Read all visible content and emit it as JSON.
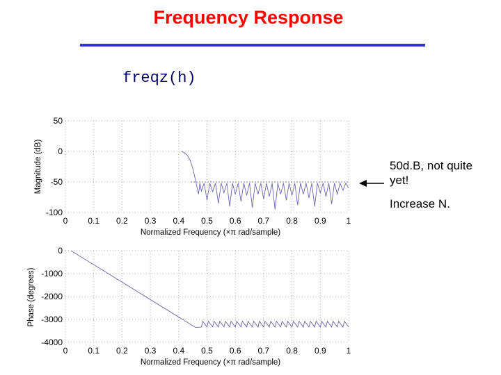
{
  "slide": {
    "title": "Frequency Response",
    "code": "freqz(h)",
    "annotation_1": "50d.B, not quite yet!",
    "annotation_2": "Increase N.",
    "colors": {
      "title": "#ff0000",
      "rule": "#3333cc",
      "code": "#000066",
      "curve": "#6666aa"
    }
  },
  "chart_data": [
    {
      "type": "line",
      "xlabel": "Normalized Frequency  (×π rad/sample)",
      "ylabel": "Magnitude (dB)",
      "xlim": [
        0,
        1
      ],
      "ylim": [
        -100,
        50
      ],
      "xticks": [
        "0",
        "0.1",
        "0.2",
        "0.3",
        "0.4",
        "0.5",
        "0.6",
        "0.7",
        "0.8",
        "0.9",
        "1"
      ],
      "yticks": [
        "50",
        "0",
        "-50",
        "-100"
      ],
      "ytick_values": [
        50,
        0,
        -50,
        -100
      ],
      "grid": true,
      "reference_level": -50,
      "series": [
        {
          "x": [
            0.41,
            0.42,
            0.43,
            0.44,
            0.45,
            0.46,
            0.47,
            0.475,
            0.48,
            0.49,
            0.5,
            0.51,
            0.52,
            0.53,
            0.54,
            0.55,
            0.56,
            0.57,
            0.58,
            0.59,
            0.6,
            0.61,
            0.62,
            0.63,
            0.64,
            0.65,
            0.66,
            0.67,
            0.68,
            0.69,
            0.7,
            0.71,
            0.72,
            0.73,
            0.74,
            0.75,
            0.76,
            0.77,
            0.78,
            0.79,
            0.8,
            0.81,
            0.82,
            0.83,
            0.84,
            0.85,
            0.86,
            0.87,
            0.88,
            0.89,
            0.9,
            0.91,
            0.92,
            0.93,
            0.94,
            0.95,
            0.96,
            0.97,
            0.98,
            0.99,
            1.0
          ],
          "y": [
            0,
            -2,
            -6,
            -14,
            -28,
            -48,
            -70,
            -52,
            -65,
            -52,
            -80,
            -52,
            -66,
            -52,
            -85,
            -52,
            -68,
            -52,
            -90,
            -52,
            -70,
            -52,
            -82,
            -52,
            -72,
            -52,
            -92,
            -52,
            -70,
            -52,
            -78,
            -52,
            -74,
            -52,
            -95,
            -52,
            -70,
            -52,
            -80,
            -52,
            -72,
            -52,
            -88,
            -52,
            -70,
            -52,
            -76,
            -52,
            -90,
            -52,
            -68,
            -52,
            -74,
            -52,
            -86,
            -52,
            -70,
            -52,
            -64,
            -52,
            -60
          ]
        }
      ]
    },
    {
      "type": "line",
      "xlabel": "Normalized Frequency  (×π rad/sample)",
      "ylabel": "Phase (degrees)",
      "xlim": [
        0,
        1
      ],
      "ylim": [
        -4000,
        0
      ],
      "xticks": [
        "0",
        "0.1",
        "0.2",
        "0.3",
        "0.4",
        "0.5",
        "0.6",
        "0.7",
        "0.8",
        "0.9",
        "1"
      ],
      "yticks": [
        "0",
        "-1000",
        "-2000",
        "-3000",
        "-4000"
      ],
      "ytick_values": [
        0,
        -1000,
        -2000,
        -3000,
        -4000
      ],
      "grid": true,
      "series": [
        {
          "x": [
            0.02,
            0.46,
            0.48,
            0.485,
            0.5,
            0.505,
            0.52,
            0.525,
            0.54,
            0.545,
            0.56,
            0.565,
            0.58,
            0.585,
            0.6,
            0.605,
            0.62,
            0.625,
            0.64,
            0.645,
            0.66,
            0.665,
            0.68,
            0.685,
            0.7,
            0.705,
            0.72,
            0.725,
            0.74,
            0.745,
            0.76,
            0.765,
            0.78,
            0.785,
            0.8,
            0.805,
            0.82,
            0.825,
            0.84,
            0.845,
            0.86,
            0.865,
            0.88,
            0.885,
            0.9,
            0.905,
            0.92,
            0.925,
            0.94,
            0.945,
            0.96,
            0.965,
            0.98,
            0.985,
            1.0
          ],
          "y": [
            0,
            -3350,
            -3330,
            -3080,
            -3330,
            -3080,
            -3330,
            -3080,
            -3330,
            -3080,
            -3330,
            -3080,
            -3330,
            -3080,
            -3330,
            -3080,
            -3330,
            -3080,
            -3330,
            -3080,
            -3330,
            -3080,
            -3330,
            -3080,
            -3330,
            -3080,
            -3330,
            -3080,
            -3330,
            -3080,
            -3330,
            -3080,
            -3330,
            -3080,
            -3330,
            -3080,
            -3330,
            -3080,
            -3330,
            -3080,
            -3330,
            -3080,
            -3330,
            -3080,
            -3330,
            -3080,
            -3330,
            -3080,
            -3330,
            -3080,
            -3330,
            -3080,
            -3330,
            -3080,
            -3330
          ]
        }
      ]
    }
  ]
}
